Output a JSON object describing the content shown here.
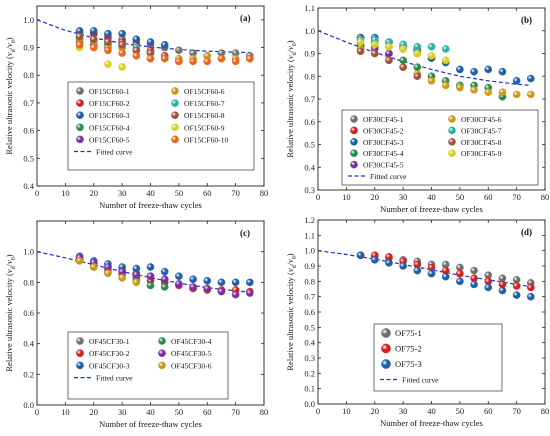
{
  "colors": {
    "gray": "#6f6f6f",
    "red": "#d42020",
    "blue": "#1f5fa8",
    "green": "#2a8a4a",
    "purple": "#7a2fa0",
    "orange": "#e8661e",
    "cyan": "#2bb2a6",
    "brown": "#a0523c",
    "yellow": "#d8d020",
    "gold": "#c99a1a",
    "fit": "#1a2fcf"
  },
  "chart_data": [
    {
      "type": "scatter",
      "panel_label": "(a)",
      "xlabel": "Number of freeze-thaw cycles",
      "ylabel": "Relative ultrasonic velocity (vd/v0)",
      "ylabel_main": "Relative ultrasonic velocity (",
      "ylabel_v": "v",
      "ylabel_d": "d",
      "ylabel_slash": "/",
      "ylabel_0": "0",
      "ylabel_end": ")",
      "xlim": [
        0,
        80
      ],
      "ylim": [
        0.4,
        1.05
      ],
      "xticks": [
        "0",
        "10",
        "20",
        "30",
        "40",
        "50",
        "60",
        "70",
        "80"
      ],
      "yticks": [
        "0.4",
        "0.5",
        "0.6",
        "0.7",
        "0.8",
        "0.9",
        "1.0"
      ],
      "legend_placement": "center",
      "legend_columns": 2,
      "fit_label": "Fitted curve",
      "fit": {
        "x": [
          0,
          10,
          20,
          30,
          40,
          50,
          60,
          70,
          75
        ],
        "y": [
          1.0,
          0.962,
          0.935,
          0.915,
          0.902,
          0.893,
          0.887,
          0.883,
          0.882
        ]
      },
      "series": [
        {
          "name": "OF15CF60-1",
          "color": "gray",
          "x": [
            15,
            20,
            25,
            30,
            35,
            40,
            45,
            50,
            55,
            60,
            65,
            70,
            75
          ],
          "y": [
            0.95,
            0.95,
            0.93,
            0.93,
            0.92,
            0.91,
            0.9,
            0.89,
            0.88,
            0.87,
            0.88,
            0.88,
            0.87
          ]
        },
        {
          "name": "OF15CF60-2",
          "color": "red",
          "x": [
            15,
            20,
            25,
            30,
            35,
            40
          ],
          "y": [
            0.96,
            0.95,
            0.94,
            0.92,
            0.91,
            0.89
          ]
        },
        {
          "name": "OF15CF60-3",
          "color": "blue",
          "x": [
            15,
            20,
            25,
            30,
            35,
            40,
            45
          ],
          "y": [
            0.96,
            0.96,
            0.95,
            0.95,
            0.93,
            0.92,
            0.91
          ]
        },
        {
          "name": "OF15CF60-4",
          "color": "green",
          "x": [
            15,
            20,
            25,
            30,
            35
          ],
          "y": [
            0.93,
            0.92,
            0.91,
            0.9,
            0.89
          ]
        },
        {
          "name": "OF15CF60-5",
          "color": "purple",
          "x": [
            15,
            20,
            25
          ],
          "y": [
            0.92,
            0.91,
            0.9
          ]
        },
        {
          "name": "OF15CF60-6",
          "color": "gold",
          "x": [
            15,
            20,
            25,
            30,
            35,
            40,
            45,
            50,
            55,
            60,
            65,
            70,
            75
          ],
          "y": [
            0.93,
            0.92,
            0.9,
            0.9,
            0.89,
            0.88,
            0.87,
            0.86,
            0.86,
            0.87,
            0.86,
            0.86,
            0.86
          ]
        },
        {
          "name": "OF15CF60-7",
          "color": "cyan",
          "x": [
            15,
            20,
            25,
            30,
            35,
            40
          ],
          "y": [
            0.94,
            0.93,
            0.92,
            0.91,
            0.9,
            0.88
          ]
        },
        {
          "name": "OF15CF60-8",
          "color": "brown",
          "x": [
            15,
            20,
            25,
            30,
            35,
            40,
            45,
            50
          ],
          "y": [
            0.94,
            0.93,
            0.92,
            0.91,
            0.89,
            0.88,
            0.87,
            0.85
          ]
        },
        {
          "name": "OF15CF60-9",
          "color": "yellow",
          "x": [
            15,
            20,
            25,
            30
          ],
          "y": [
            0.9,
            0.9,
            0.84,
            0.83
          ]
        },
        {
          "name": "OF15CF60-10",
          "color": "orange",
          "x": [
            15,
            20,
            25,
            30,
            35,
            40,
            45,
            50,
            55,
            60,
            65,
            70,
            75
          ],
          "y": [
            0.91,
            0.9,
            0.89,
            0.88,
            0.87,
            0.86,
            0.86,
            0.85,
            0.85,
            0.85,
            0.86,
            0.85,
            0.86
          ]
        }
      ]
    },
    {
      "type": "scatter",
      "panel_label": "(b)",
      "xlabel": "Number of freeze-thaw cycles",
      "ylabel": "Relative ultrasonic velocity (vd/v0)",
      "ylabel_main": "Relative ultrasonic velocity (",
      "ylabel_v": "v",
      "ylabel_d": "d",
      "ylabel_slash": "/",
      "ylabel_0": "0",
      "ylabel_end": ")",
      "xlim": [
        0,
        80
      ],
      "ylim": [
        0.3,
        1.1
      ],
      "xticks": [
        "0",
        "10",
        "20",
        "30",
        "40",
        "50",
        "60",
        "70",
        "80"
      ],
      "yticks": [
        "0.3",
        "0.4",
        "0.5",
        "0.6",
        "0.7",
        "0.8",
        "0.9",
        "1.0",
        "1.1"
      ],
      "legend_placement": "bottom-right",
      "legend_columns": 2,
      "fit_label": "Fitted curve",
      "fit": {
        "x": [
          0,
          10,
          20,
          30,
          40,
          50,
          60,
          70,
          75
        ],
        "y": [
          1.0,
          0.95,
          0.905,
          0.865,
          0.83,
          0.8,
          0.78,
          0.765,
          0.76
        ]
      },
      "series": [
        {
          "name": "OF30CF45-1",
          "color": "gray",
          "x": [
            15,
            20,
            25,
            30,
            35,
            40
          ],
          "y": [
            0.96,
            0.95,
            0.93,
            0.92,
            0.9,
            0.88
          ]
        },
        {
          "name": "OF30CF45-2",
          "color": "red",
          "x": [
            15,
            20,
            25,
            30,
            35
          ],
          "y": [
            0.97,
            0.96,
            0.95,
            0.93,
            0.92
          ]
        },
        {
          "name": "OF30CF45-3",
          "color": "blue",
          "x": [
            15,
            20,
            25,
            30,
            35,
            40,
            45,
            50,
            55,
            60,
            65,
            70,
            75
          ],
          "y": [
            0.97,
            0.97,
            0.95,
            0.93,
            0.91,
            0.88,
            0.86,
            0.83,
            0.82,
            0.83,
            0.82,
            0.78,
            0.79
          ]
        },
        {
          "name": "OF30CF45-4",
          "color": "green",
          "x": [
            15,
            20,
            25,
            30,
            35,
            40,
            45,
            50,
            55,
            60,
            65
          ],
          "y": [
            0.94,
            0.93,
            0.9,
            0.87,
            0.84,
            0.8,
            0.78,
            0.76,
            0.76,
            0.75,
            0.71
          ]
        },
        {
          "name": "OF30CF45-5",
          "color": "purple",
          "x": [
            15,
            20,
            25
          ],
          "y": [
            0.93,
            0.92,
            0.9
          ]
        },
        {
          "name": "OF30CF45-6",
          "color": "gold",
          "x": [
            15,
            20,
            25,
            30,
            35,
            40,
            45,
            50,
            55,
            60,
            65,
            70,
            75
          ],
          "y": [
            0.92,
            0.9,
            0.87,
            0.84,
            0.81,
            0.78,
            0.76,
            0.75,
            0.74,
            0.73,
            0.73,
            0.72,
            0.72
          ]
        },
        {
          "name": "OF30CF45-7",
          "color": "cyan",
          "x": [
            15,
            20,
            25,
            30,
            35,
            40,
            45
          ],
          "y": [
            0.96,
            0.96,
            0.95,
            0.94,
            0.93,
            0.93,
            0.92
          ]
        },
        {
          "name": "OF30CF45-8",
          "color": "brown",
          "x": [
            15,
            20,
            25,
            30,
            35
          ],
          "y": [
            0.91,
            0.9,
            0.87,
            0.84,
            0.8
          ]
        },
        {
          "name": "OF30CF45-9",
          "color": "yellow",
          "x": [
            15,
            20,
            25,
            30,
            35,
            40,
            45
          ],
          "y": [
            0.95,
            0.94,
            0.93,
            0.92,
            0.9,
            0.89,
            0.87
          ]
        }
      ]
    },
    {
      "type": "scatter",
      "panel_label": "(c)",
      "xlabel": "Number of freeze-thaw cycles",
      "ylabel": "Relative ultrasonic velocity (vd/v0)",
      "ylabel_main": "Relative ultrasonic velocity (",
      "ylabel_v": "v",
      "ylabel_d": "d",
      "ylabel_slash": "/",
      "ylabel_0": "0",
      "ylabel_end": ")",
      "xlim": [
        0,
        80
      ],
      "ylim": [
        0.0,
        1.2
      ],
      "xticks": [
        "0",
        "10",
        "20",
        "30",
        "40",
        "50",
        "60",
        "70",
        "80"
      ],
      "yticks": [
        "0.0",
        "0.2",
        "0.4",
        "0.6",
        "0.8",
        "1.0"
      ],
      "legend_placement": "bottom-left",
      "legend_columns": 2,
      "fit_label": "Fitted curve",
      "fit": {
        "x": [
          0,
          10,
          20,
          30,
          40,
          50,
          60,
          70,
          75
        ],
        "y": [
          1.0,
          0.96,
          0.915,
          0.87,
          0.83,
          0.795,
          0.765,
          0.745,
          0.735
        ]
      },
      "series": [
        {
          "name": "OF45CF30-1",
          "color": "gray",
          "x": [
            15,
            20,
            25,
            30,
            35,
            40,
            45
          ],
          "y": [
            0.95,
            0.92,
            0.9,
            0.88,
            0.86,
            0.84,
            0.82
          ]
        },
        {
          "name": "OF45CF30-2",
          "color": "red",
          "x": [
            15,
            20,
            25,
            30,
            35,
            40,
            45,
            50,
            55,
            60,
            65,
            70,
            75
          ],
          "y": [
            0.95,
            0.92,
            0.88,
            0.85,
            0.83,
            0.81,
            0.8,
            0.78,
            0.76,
            0.75,
            0.75,
            0.75,
            0.74
          ]
        },
        {
          "name": "OF45CF30-3",
          "color": "blue",
          "x": [
            15,
            20,
            25,
            30,
            35,
            40,
            45,
            50,
            55,
            60,
            65,
            70,
            75
          ],
          "y": [
            0.97,
            0.94,
            0.92,
            0.9,
            0.89,
            0.9,
            0.87,
            0.84,
            0.82,
            0.81,
            0.8,
            0.8,
            0.8
          ]
        },
        {
          "name": "OF45CF30-4",
          "color": "green",
          "x": [
            15,
            20,
            25,
            30,
            35,
            40,
            45
          ],
          "y": [
            0.94,
            0.9,
            0.86,
            0.83,
            0.81,
            0.78,
            0.77
          ]
        },
        {
          "name": "OF45CF30-5",
          "color": "purple",
          "x": [
            15,
            20,
            25,
            30,
            35,
            40,
            45,
            50,
            55,
            60,
            65,
            70,
            75
          ],
          "y": [
            0.96,
            0.93,
            0.9,
            0.87,
            0.85,
            0.84,
            0.82,
            0.79,
            0.77,
            0.76,
            0.74,
            0.72,
            0.73
          ]
        },
        {
          "name": "OF45CF30-6",
          "color": "gold",
          "x": [
            15,
            20,
            25,
            30,
            35
          ],
          "y": [
            0.94,
            0.9,
            0.86,
            0.83,
            0.8
          ]
        }
      ]
    },
    {
      "type": "scatter",
      "panel_label": "(d)",
      "xlabel": "Number of freeze-thaw cycles",
      "ylabel": "Relative ultrasonic velocity (vd/v0)",
      "ylabel_main": "Relative ultrasonic velocity (",
      "ylabel_v": "v",
      "ylabel_d": "d",
      "ylabel_slash": "/",
      "ylabel_0": "0",
      "ylabel_end": ")",
      "xlim": [
        0,
        80
      ],
      "ylim": [
        0.0,
        1.2
      ],
      "xticks": [
        "0",
        "10",
        "20",
        "30",
        "40",
        "50",
        "60",
        "70",
        "80"
      ],
      "yticks": [
        "0.0",
        "0.1",
        "0.2",
        "0.3",
        "0.4",
        "0.5",
        "0.6",
        "0.7",
        "0.8",
        "0.9",
        "1.0",
        "1.1",
        "1.2"
      ],
      "legend_placement": "bottom-center",
      "legend_columns": 1,
      "fit_label": "Fitted curve",
      "fit": {
        "x": [
          0,
          10,
          20,
          30,
          40,
          50,
          60,
          70,
          75
        ],
        "y": [
          1.0,
          0.975,
          0.945,
          0.91,
          0.875,
          0.84,
          0.81,
          0.78,
          0.765
        ]
      },
      "series": [
        {
          "name": "OF75-1",
          "color": "gray",
          "x": [
            15,
            20,
            25,
            30,
            35,
            40,
            45,
            50,
            55,
            60,
            65,
            70,
            75
          ],
          "y": [
            0.97,
            0.96,
            0.95,
            0.94,
            0.93,
            0.91,
            0.91,
            0.89,
            0.87,
            0.84,
            0.82,
            0.81,
            0.79
          ]
        },
        {
          "name": "OF75-2",
          "color": "red",
          "x": [
            15,
            20,
            25,
            30,
            35,
            40,
            45,
            50,
            55,
            60,
            65,
            70,
            75
          ],
          "y": [
            0.97,
            0.97,
            0.96,
            0.93,
            0.91,
            0.89,
            0.87,
            0.85,
            0.82,
            0.8,
            0.78,
            0.77,
            0.76
          ]
        },
        {
          "name": "OF75-3",
          "color": "blue",
          "x": [
            15,
            20,
            25,
            30,
            35,
            40,
            45,
            50,
            55,
            60,
            65,
            70,
            75
          ],
          "y": [
            0.97,
            0.94,
            0.92,
            0.9,
            0.87,
            0.85,
            0.83,
            0.8,
            0.78,
            0.76,
            0.74,
            0.71,
            0.7
          ]
        }
      ]
    }
  ]
}
